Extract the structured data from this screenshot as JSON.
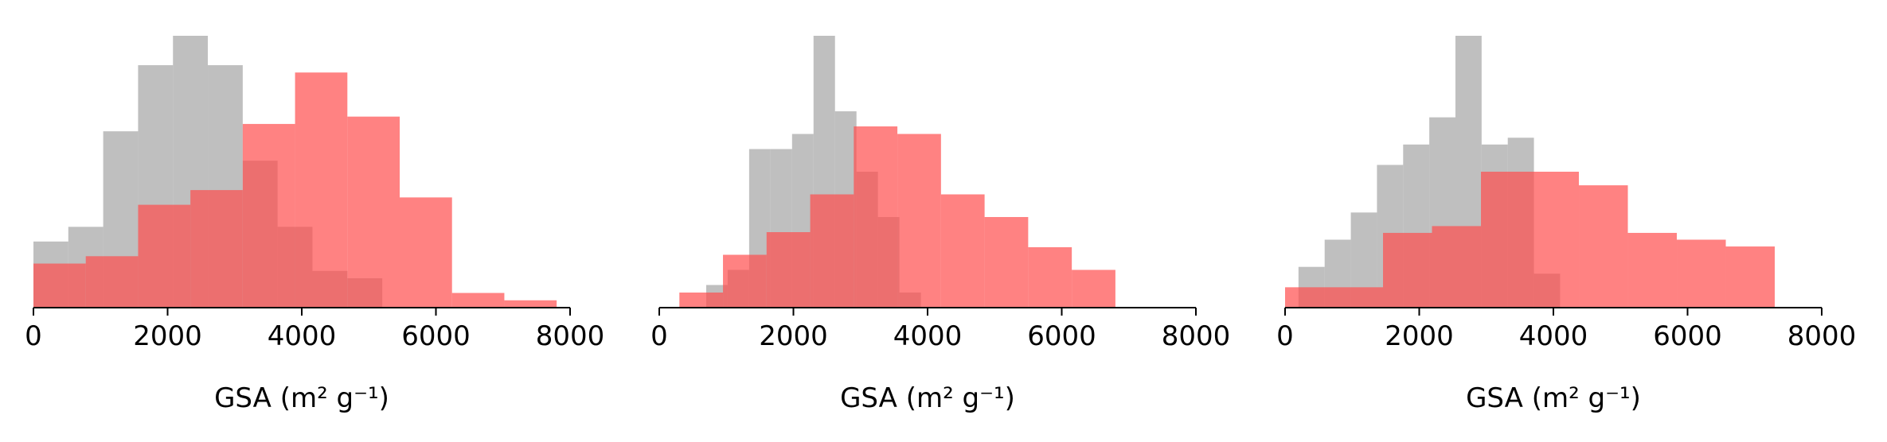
{
  "colors": {
    "gray_series": "#a6a6a6",
    "red_series": "#ff4d4d",
    "axis": "#000000"
  },
  "chart_data": [
    {
      "type": "histogram",
      "xlabel": "GSA (m² g⁻¹)",
      "xlim": [
        0,
        8000
      ],
      "xticks": [
        "0",
        "2000",
        "4000",
        "6000",
        "8000"
      ],
      "y_axis_shown": false,
      "series": [
        {
          "color": "gray",
          "bins": [
            0,
            520,
            1040,
            1560,
            2080,
            2600,
            3120,
            3640,
            4160,
            4680,
            5200
          ],
          "counts": [
            9,
            11,
            24,
            33,
            37,
            33,
            20,
            11,
            5,
            4
          ]
        },
        {
          "color": "red",
          "bins": [
            0,
            780,
            1560,
            2340,
            3120,
            3900,
            4680,
            5460,
            6240,
            7020,
            7800
          ],
          "counts": [
            6,
            7,
            14,
            16,
            25,
            32,
            26,
            15,
            2,
            1
          ]
        }
      ]
    },
    {
      "type": "histogram",
      "xlabel": "GSA (m² g⁻¹)",
      "xlim": [
        0,
        8000
      ],
      "xticks": [
        "0",
        "2000",
        "4000",
        "6000",
        "8000"
      ],
      "y_axis_shown": false,
      "series": [
        {
          "color": "gray",
          "bins": [
            700,
            1020,
            1340,
            1660,
            1980,
            2300,
            2620,
            2940,
            3260,
            3580,
            3900
          ],
          "counts": [
            3,
            5,
            21,
            21,
            23,
            36,
            26,
            18,
            12,
            2
          ]
        },
        {
          "color": "red",
          "bins": [
            300,
            950,
            1600,
            2250,
            2900,
            3550,
            4200,
            4850,
            5500,
            6150,
            6800
          ],
          "counts": [
            2,
            7,
            10,
            15,
            24,
            23,
            15,
            12,
            8,
            5
          ]
        }
      ]
    },
    {
      "type": "histogram",
      "xlabel": "GSA (m² g⁻¹)",
      "xlim": [
        0,
        8000
      ],
      "xticks": [
        "0",
        "2000",
        "4000",
        "6000",
        "8000"
      ],
      "y_axis_shown": false,
      "series": [
        {
          "color": "gray",
          "bins": [
            200,
            590,
            980,
            1370,
            1760,
            2150,
            2540,
            2930,
            3320,
            3710,
            4100
          ],
          "counts": [
            6,
            10,
            14,
            21,
            24,
            28,
            40,
            24,
            25,
            5
          ]
        },
        {
          "color": "red",
          "bins": [
            0,
            730,
            1460,
            2190,
            2920,
            3650,
            4380,
            5110,
            5840,
            6570,
            7300
          ],
          "counts": [
            3,
            3,
            11,
            12,
            20,
            20,
            18,
            11,
            10,
            9
          ]
        }
      ]
    }
  ]
}
